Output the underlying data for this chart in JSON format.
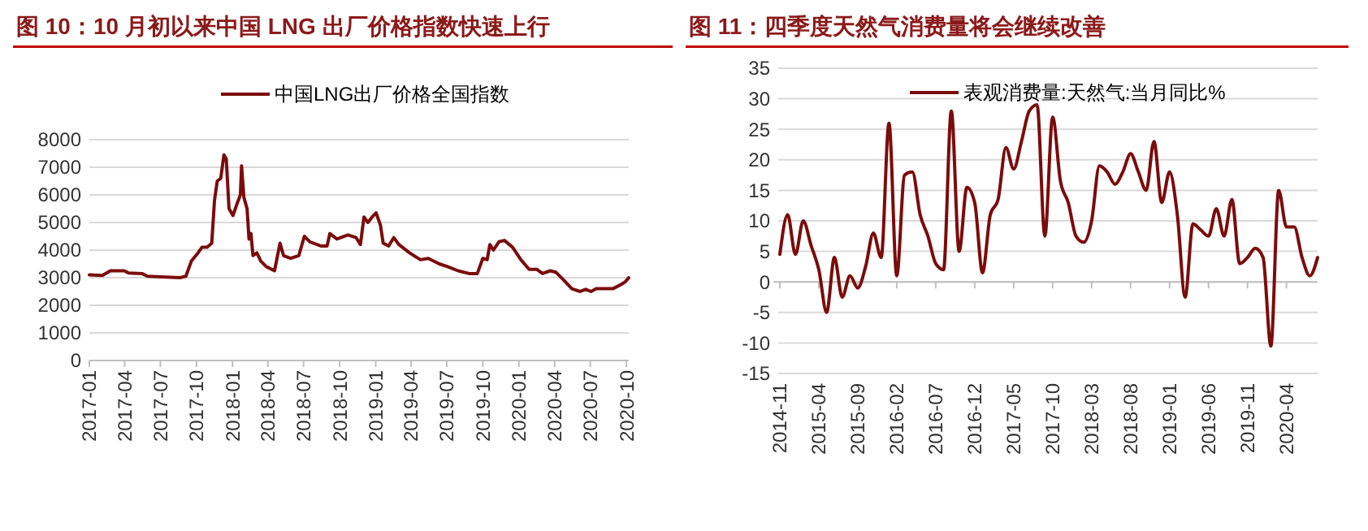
{
  "chart_data": [
    {
      "type": "line",
      "title": "图 10：10 月初以来中国 LNG 出厂价格指数快速上行",
      "legend": "top",
      "grid": "y",
      "ylim": [
        0,
        8000
      ],
      "yticks": [
        0,
        1000,
        2000,
        3000,
        4000,
        5000,
        6000,
        7000,
        8000
      ],
      "xlim": [
        "2017-01-01",
        "2020-10-07"
      ],
      "xticks": [
        "2017-01",
        "2017-04",
        "2017-07",
        "2017-10",
        "2018-01",
        "2018-04",
        "2018-07",
        "2018-10",
        "2019-01",
        "2019-04",
        "2019-07",
        "2019-10",
        "2020-01",
        "2020-04",
        "2020-07",
        "2020-10"
      ],
      "x": [
        "2017-01-01",
        "2017-02-03",
        "2017-02-24",
        "2017-03-31",
        "2017-04-11",
        "2017-05-15",
        "2017-05-29",
        "2017-07-03",
        "2017-08-20",
        "2017-09-04",
        "2017-09-18",
        "2017-10-05",
        "2017-10-15",
        "2017-10-28",
        "2017-11-09",
        "2017-11-16",
        "2017-11-23",
        "2017-12-02",
        "2017-12-10",
        "2017-12-16",
        "2017-12-23",
        "2018-01-02",
        "2018-01-13",
        "2018-01-21",
        "2018-01-24",
        "2018-01-30",
        "2018-02-07",
        "2018-02-12",
        "2018-02-17",
        "2018-02-22",
        "2018-03-04",
        "2018-03-14",
        "2018-03-28",
        "2018-04-18",
        "2018-05-02",
        "2018-05-11",
        "2018-05-29",
        "2018-06-19",
        "2018-07-03",
        "2018-07-17",
        "2018-08-14",
        "2018-08-30",
        "2018-09-06",
        "2018-09-24",
        "2018-10-22",
        "2018-11-12",
        "2018-11-23",
        "2018-12-02",
        "2018-12-12",
        "2018-12-23",
        "2019-01-02",
        "2019-01-13",
        "2019-01-20",
        "2019-02-03",
        "2019-02-16",
        "2019-03-01",
        "2019-03-28",
        "2019-04-25",
        "2019-05-15",
        "2019-06-12",
        "2019-07-03",
        "2019-07-30",
        "2019-08-27",
        "2019-09-17",
        "2019-10-01",
        "2019-10-12",
        "2019-10-19",
        "2019-10-28",
        "2019-11-11",
        "2019-11-25",
        "2019-12-16",
        "2020-01-06",
        "2020-01-27",
        "2020-02-16",
        "2020-03-01",
        "2020-03-21",
        "2020-04-04",
        "2020-04-25",
        "2020-05-15",
        "2020-06-05",
        "2020-06-19",
        "2020-07-03",
        "2020-07-16",
        "2020-08-27",
        "2020-09-17",
        "2020-09-28",
        "2020-10-07"
      ],
      "series": [
        {
          "name": "中国LNG出厂价格全国指数",
          "color": "#7b0c0c",
          "values": [
            3100,
            3080,
            3250,
            3250,
            3170,
            3150,
            3050,
            3030,
            3000,
            3050,
            3600,
            3900,
            4100,
            4100,
            4250,
            5800,
            6500,
            6600,
            7450,
            7300,
            5500,
            5250,
            5700,
            6000,
            7050,
            5900,
            5500,
            4400,
            4600,
            3800,
            3900,
            3600,
            3400,
            3250,
            4250,
            3800,
            3700,
            3800,
            4500,
            4300,
            4150,
            4150,
            4600,
            4400,
            4550,
            4450,
            4200,
            5200,
            5000,
            5200,
            5350,
            4900,
            4250,
            4150,
            4450,
            4200,
            3900,
            3650,
            3700,
            3500,
            3400,
            3250,
            3150,
            3150,
            3700,
            3650,
            4200,
            4000,
            4300,
            4350,
            4100,
            3650,
            3300,
            3300,
            3150,
            3250,
            3200,
            2900,
            2600,
            2500,
            2580,
            2500,
            2600,
            2600,
            2750,
            2850,
            3000
          ]
        }
      ]
    },
    {
      "type": "line",
      "title": "图 11：四季度天然气消费量将会继续改善",
      "legend": "top",
      "grid": "y",
      "ylim": [
        -15,
        35
      ],
      "yticks": [
        -15,
        -10,
        -5,
        0,
        5,
        10,
        15,
        20,
        25,
        30,
        35
      ],
      "categories": [
        "2014-11",
        null,
        null,
        null,
        null,
        "2015-04",
        null,
        null,
        null,
        null,
        "2015-09",
        null,
        null,
        null,
        null,
        "2016-02",
        null,
        null,
        null,
        null,
        "2016-07",
        null,
        null,
        null,
        null,
        "2016-12",
        null,
        null,
        null,
        null,
        "2017-05",
        null,
        null,
        null,
        null,
        "2017-10",
        null,
        null,
        null,
        null,
        "2018-03",
        null,
        null,
        null,
        null,
        "2018-08",
        null,
        null,
        null,
        null,
        "2019-01",
        null,
        null,
        null,
        null,
        "2019-06",
        null,
        null,
        null,
        null,
        "2019-11",
        null,
        null,
        null,
        null,
        "2020-04",
        null,
        null,
        null,
        null
      ],
      "series": [
        {
          "name": "表观消费量:天然气:当月同比%",
          "color": "#7b0c0c",
          "values": [
            4.5,
            11,
            4.5,
            10,
            6,
            2,
            -5,
            4,
            -2.5,
            1,
            -1,
            2.5,
            8,
            4,
            26,
            1,
            17.5,
            18,
            11,
            7.5,
            3,
            2,
            28,
            5,
            15.5,
            13,
            1.5,
            11,
            13.5,
            22,
            18.5,
            23,
            28,
            29,
            7.5,
            27,
            16.5,
            13,
            7.5,
            6.5,
            10,
            19,
            18,
            16,
            18,
            21,
            18,
            15,
            23,
            13,
            18,
            11,
            -2.5,
            9.5,
            8.5,
            7.5,
            12,
            7.5,
            13.5,
            3,
            4,
            5.5,
            4,
            -10.5,
            15,
            9,
            9,
            4,
            1,
            4
          ]
        }
      ]
    }
  ]
}
